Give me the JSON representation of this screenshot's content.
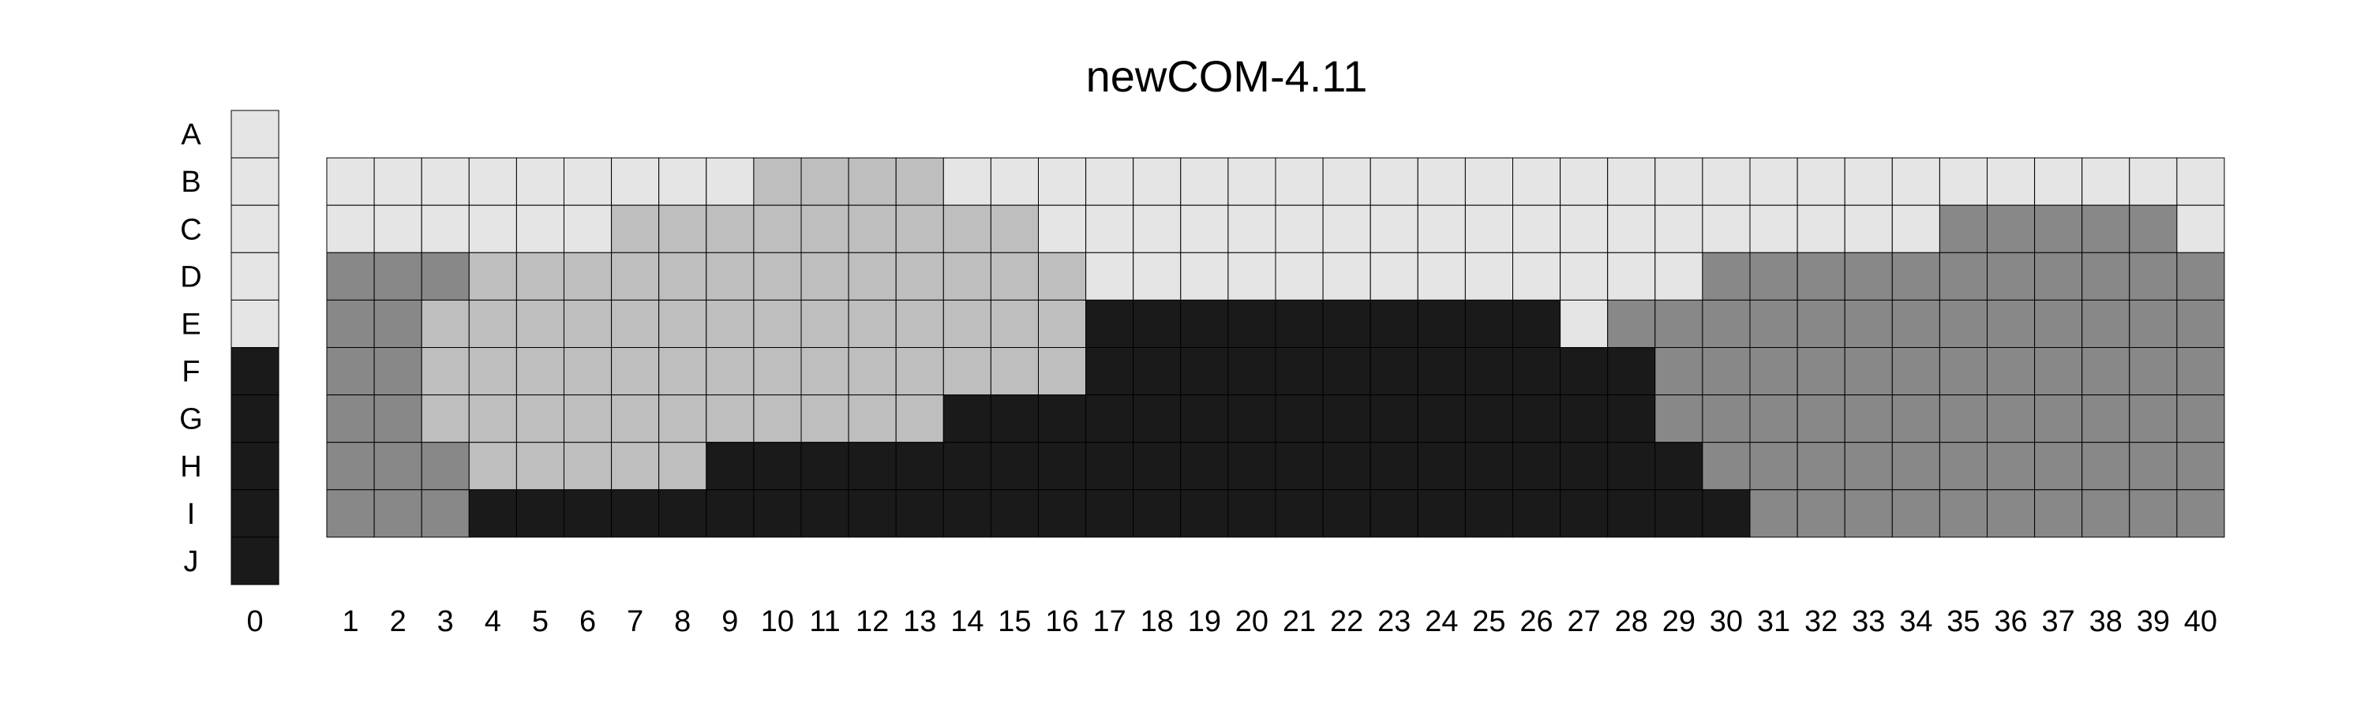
{
  "chart_data": {
    "type": "heatmap",
    "title": "newCOM-4.11",
    "xlabel": "",
    "ylabel": "",
    "row_labels": [
      "A",
      "B",
      "C",
      "D",
      "E",
      "F",
      "G",
      "H",
      "I",
      "J"
    ],
    "column0_label": "0",
    "column_labels": [
      "1",
      "2",
      "3",
      "4",
      "5",
      "6",
      "7",
      "8",
      "9",
      "10",
      "11",
      "12",
      "13",
      "14",
      "15",
      "16",
      "17",
      "18",
      "19",
      "20",
      "21",
      "22",
      "23",
      "24",
      "25",
      "26",
      "27",
      "28",
      "29",
      "30",
      "31",
      "32",
      "33",
      "34",
      "35",
      "36",
      "37",
      "38",
      "39",
      "40"
    ],
    "legend": "none",
    "grid": true,
    "shade_scale": {
      "1": "#e5e5e5",
      "2": "#bebebe",
      "3": "#888888",
      "4": "#1a1a1a"
    },
    "column0_values": [
      1,
      1,
      1,
      1,
      1,
      4,
      4,
      4,
      4,
      4
    ],
    "matrix_rows": [
      "B",
      "C",
      "D",
      "E",
      "F",
      "G",
      "H",
      "I"
    ],
    "matrix": [
      [
        1,
        1,
        1,
        1,
        1,
        1,
        1,
        1,
        1,
        2,
        2,
        2,
        2,
        1,
        1,
        1,
        1,
        1,
        1,
        1,
        1,
        1,
        1,
        1,
        1,
        1,
        1,
        1,
        1,
        1,
        1,
        1,
        1,
        1,
        1,
        1,
        1,
        1,
        1,
        1
      ],
      [
        1,
        1,
        1,
        1,
        1,
        1,
        2,
        2,
        2,
        2,
        2,
        2,
        2,
        2,
        2,
        1,
        1,
        1,
        1,
        1,
        1,
        1,
        1,
        1,
        1,
        1,
        1,
        1,
        1,
        1,
        1,
        1,
        1,
        1,
        3,
        3,
        3,
        3,
        3,
        1
      ],
      [
        3,
        3,
        3,
        2,
        2,
        2,
        2,
        2,
        2,
        2,
        2,
        2,
        2,
        2,
        2,
        2,
        1,
        1,
        1,
        1,
        1,
        1,
        1,
        1,
        1,
        1,
        1,
        1,
        1,
        3,
        3,
        3,
        3,
        3,
        3,
        3,
        3,
        3,
        3,
        3
      ],
      [
        3,
        3,
        2,
        2,
        2,
        2,
        2,
        2,
        2,
        2,
        2,
        2,
        2,
        2,
        2,
        2,
        4,
        4,
        4,
        4,
        4,
        4,
        4,
        4,
        4,
        4,
        1,
        3,
        3,
        3,
        3,
        3,
        3,
        3,
        3,
        3,
        3,
        3,
        3,
        3
      ],
      [
        3,
        3,
        2,
        2,
        2,
        2,
        2,
        2,
        2,
        2,
        2,
        2,
        2,
        2,
        2,
        2,
        4,
        4,
        4,
        4,
        4,
        4,
        4,
        4,
        4,
        4,
        4,
        4,
        3,
        3,
        3,
        3,
        3,
        3,
        3,
        3,
        3,
        3,
        3,
        3
      ],
      [
        3,
        3,
        2,
        2,
        2,
        2,
        2,
        2,
        2,
        2,
        2,
        2,
        2,
        4,
        4,
        4,
        4,
        4,
        4,
        4,
        4,
        4,
        4,
        4,
        4,
        4,
        4,
        4,
        3,
        3,
        3,
        3,
        3,
        3,
        3,
        3,
        3,
        3,
        3,
        3
      ],
      [
        3,
        3,
        3,
        2,
        2,
        2,
        2,
        2,
        4,
        4,
        4,
        4,
        4,
        4,
        4,
        4,
        4,
        4,
        4,
        4,
        4,
        4,
        4,
        4,
        4,
        4,
        4,
        4,
        4,
        3,
        3,
        3,
        3,
        3,
        3,
        3,
        3,
        3,
        3,
        3
      ],
      [
        3,
        3,
        3,
        4,
        4,
        4,
        4,
        4,
        4,
        4,
        4,
        4,
        4,
        4,
        4,
        4,
        4,
        4,
        4,
        4,
        4,
        4,
        4,
        4,
        4,
        4,
        4,
        4,
        4,
        4,
        3,
        3,
        3,
        3,
        3,
        3,
        3,
        3,
        3,
        3
      ]
    ]
  }
}
